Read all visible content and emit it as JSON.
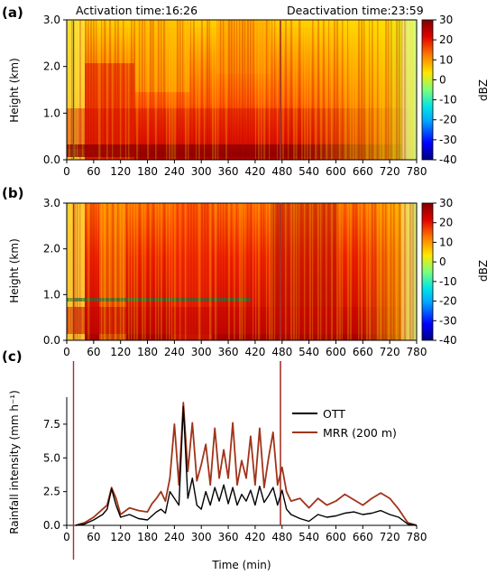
{
  "chart_data": [
    {
      "type": "heatmap",
      "panel_label": "(a)",
      "ylabel": "Height (km)",
      "xticks": [
        0,
        60,
        120,
        180,
        240,
        300,
        360,
        420,
        480,
        540,
        600,
        660,
        720,
        780
      ],
      "xlim": [
        0,
        780
      ],
      "yticks": [
        "0.0",
        "1.0",
        "2.0",
        "3.0"
      ],
      "ylim": [
        0.0,
        3.0
      ],
      "annotations": [
        "Activation time:16:26",
        "Deactivation time:23:59"
      ],
      "vlines": [
        15,
        480
      ],
      "colorbar": {
        "label": "dBZ",
        "ticks": [
          30,
          20,
          10,
          0,
          -10,
          -20,
          -30,
          -40
        ],
        "range": [
          -40,
          30
        ]
      },
      "grid": false
    },
    {
      "type": "heatmap",
      "panel_label": "(b)",
      "ylabel": "Height (km)",
      "xticks": [
        0,
        60,
        120,
        180,
        240,
        300,
        360,
        420,
        480,
        540,
        600,
        660,
        720,
        780
      ],
      "xlim": [
        0,
        780
      ],
      "yticks": [
        "0.0",
        "1.0",
        "2.0",
        "3.0"
      ],
      "ylim": [
        0.0,
        3.0
      ],
      "vlines": [
        15,
        480
      ],
      "colorbar": {
        "label": "dBZ",
        "ticks": [
          30,
          20,
          10,
          0,
          -10,
          -20,
          -30,
          -40
        ],
        "range": [
          -40,
          30
        ]
      },
      "grid": false
    },
    {
      "type": "line",
      "panel_label": "(c)",
      "xlabel": "Time (min)",
      "ylabel": "Rainfall intensity (mm h⁻¹)",
      "xticks": [
        0,
        60,
        120,
        180,
        240,
        300,
        360,
        420,
        480,
        540,
        600,
        660,
        720,
        780
      ],
      "xlim": [
        0,
        780
      ],
      "yticks": [
        "0.0",
        "2.5",
        "5.0",
        "7.5"
      ],
      "ylim": [
        0,
        9.5
      ],
      "vlines": [
        15,
        480
      ],
      "legend_position": "top-right",
      "x": [
        20,
        40,
        60,
        80,
        90,
        100,
        110,
        120,
        140,
        160,
        180,
        190,
        200,
        210,
        220,
        230,
        240,
        250,
        260,
        270,
        280,
        290,
        300,
        310,
        320,
        330,
        340,
        350,
        360,
        370,
        380,
        390,
        400,
        410,
        420,
        430,
        440,
        450,
        460,
        470,
        480,
        490,
        500,
        520,
        540,
        560,
        580,
        600,
        620,
        640,
        660,
        680,
        700,
        720,
        740,
        760,
        780
      ],
      "series": [
        {
          "name": "OTT",
          "color": "#000000",
          "values": [
            0.0,
            0.1,
            0.4,
            0.8,
            1.2,
            2.7,
            1.5,
            0.6,
            0.8,
            0.5,
            0.4,
            0.7,
            1.0,
            1.2,
            0.9,
            2.5,
            2.0,
            1.5,
            8.8,
            2.0,
            3.5,
            1.5,
            1.2,
            2.5,
            1.5,
            2.8,
            1.8,
            3.0,
            1.6,
            2.8,
            1.5,
            2.3,
            1.8,
            2.6,
            1.5,
            2.9,
            1.7,
            2.2,
            2.8,
            1.5,
            2.6,
            1.2,
            0.8,
            0.5,
            0.3,
            0.8,
            0.6,
            0.7,
            0.9,
            1.0,
            0.8,
            0.9,
            1.1,
            0.8,
            0.6,
            0.1,
            0.0
          ]
        },
        {
          "name": "MRR (200 m)",
          "color": "#a0341a",
          "values": [
            0.0,
            0.2,
            0.6,
            1.2,
            1.5,
            2.8,
            2.0,
            0.8,
            1.3,
            1.1,
            1.0,
            1.6,
            2.0,
            2.5,
            1.8,
            3.5,
            7.5,
            3.0,
            9.1,
            4.0,
            7.6,
            3.3,
            4.5,
            6.0,
            3.0,
            7.2,
            3.5,
            5.6,
            3.5,
            7.6,
            3.0,
            4.8,
            3.5,
            6.6,
            3.0,
            7.2,
            2.8,
            5.0,
            6.9,
            3.0,
            4.3,
            2.5,
            1.8,
            2.0,
            1.3,
            2.0,
            1.5,
            1.8,
            2.3,
            1.9,
            1.5,
            2.0,
            2.4,
            2.0,
            1.2,
            0.2,
            0.0
          ]
        }
      ],
      "grid": false
    }
  ]
}
